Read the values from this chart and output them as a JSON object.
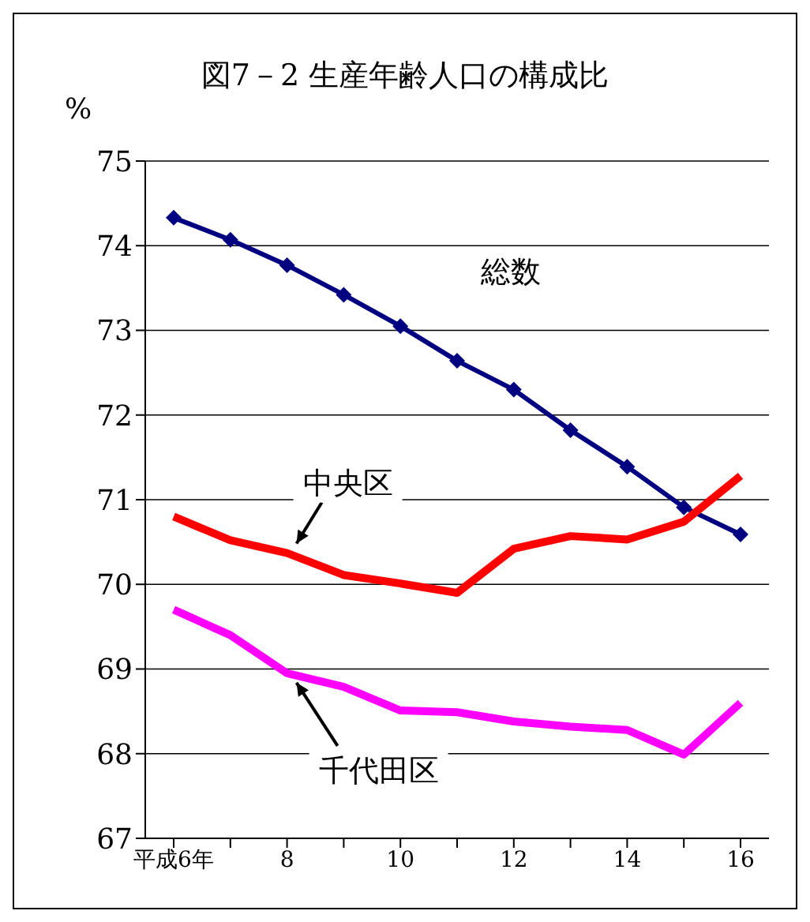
{
  "chart_data": {
    "type": "line",
    "title": "図7－2  生産年齢人口の構成比",
    "ylabel": "%",
    "categories": [
      "平成6年",
      null,
      "8",
      null,
      "10",
      null,
      "12",
      null,
      "14",
      null,
      "16"
    ],
    "ylim": [
      67,
      75
    ],
    "yticks": [
      67,
      68,
      69,
      70,
      71,
      72,
      73,
      74,
      75
    ],
    "grid": "y",
    "legend": false,
    "line_style": "solid",
    "series": [
      {
        "name": "総数",
        "color": "#000080",
        "marker": "diamond",
        "values": [
          74.33,
          74.07,
          73.77,
          73.42,
          73.05,
          72.64,
          72.3,
          71.82,
          71.39,
          70.91,
          70.59
        ]
      },
      {
        "name": "中央区",
        "color": "#ff0000",
        "marker": "none",
        "values": [
          70.8,
          70.52,
          70.37,
          70.11,
          70.01,
          69.9,
          70.42,
          70.57,
          70.53,
          70.74,
          71.28
        ]
      },
      {
        "name": "千代田区",
        "color": "#ff00ff",
        "marker": "none",
        "values": [
          69.7,
          69.4,
          68.95,
          68.79,
          68.51,
          68.49,
          68.38,
          68.32,
          68.28,
          67.99,
          68.6
        ]
      }
    ]
  }
}
